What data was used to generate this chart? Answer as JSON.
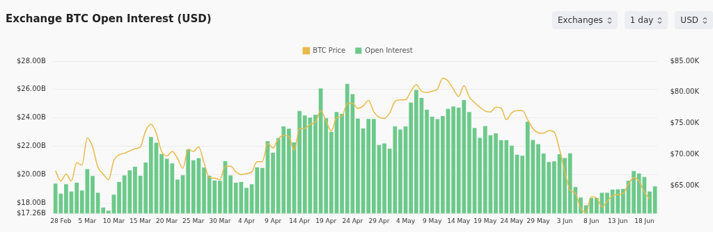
{
  "chart_data": {
    "type": "bar",
    "title": "Exchange BTC Open Interest (USD)",
    "annotations": [
      "Exchanges",
      "1 day",
      "USD"
    ],
    "categories": [
      null,
      "28 Feb",
      null,
      null,
      null,
      null,
      "5 Mar",
      null,
      null,
      null,
      null,
      "10 Mar",
      null,
      null,
      null,
      null,
      "15 Mar",
      null,
      null,
      null,
      null,
      "20 Mar",
      null,
      null,
      null,
      null,
      "25 Mar",
      null,
      null,
      null,
      null,
      "30 Mar",
      null,
      null,
      null,
      null,
      "4 Apr",
      null,
      null,
      null,
      null,
      "9 Apr",
      null,
      null,
      null,
      null,
      "14 Apr",
      null,
      null,
      null,
      null,
      "19 Apr",
      null,
      null,
      null,
      null,
      "24 Apr",
      null,
      null,
      null,
      null,
      "29 Apr",
      null,
      null,
      null,
      null,
      "4 May",
      null,
      null,
      null,
      null,
      "9 May",
      null,
      null,
      null,
      null,
      "14 May",
      null,
      null,
      null,
      null,
      "19 May",
      null,
      null,
      null,
      null,
      "24 May",
      null,
      null,
      null,
      null,
      "29 May",
      null,
      null,
      null,
      null,
      "3 Jun",
      null,
      null,
      null,
      null,
      "8 Jun",
      null,
      null,
      null,
      null,
      "13 Jun",
      null,
      null,
      null,
      null,
      "18 Jun",
      null,
      null
    ],
    "series": [
      {
        "name": "BTC Price",
        "type": "line",
        "axis": "y2",
        "color": "#e9b949",
        "values": [
          67.37,
          65.73,
          66.82,
          65.73,
          68.65,
          68.28,
          72.66,
          71.2,
          67.92,
          66.82,
          65.91,
          69.01,
          69.93,
          70.18,
          70.55,
          70.91,
          71.2,
          73.76,
          74.85,
          73.39,
          70.47,
          69.74,
          70.47,
          69.38,
          67.74,
          70.84,
          70.47,
          71.2,
          68.65,
          66.28,
          66.17,
          65.91,
          68.1,
          68.1,
          67.19,
          66.75,
          66.9,
          67.19,
          68.83,
          68.83,
          71.75,
          71.02,
          72.48,
          73.03,
          72.85,
          70.66,
          74.12,
          74.2,
          74.85,
          75.22,
          77.04,
          75.4,
          73.76,
          75.95,
          76.13,
          78.14,
          78.21,
          77.41,
          77.77,
          78.69,
          76.86,
          75.95,
          75.77,
          76.68,
          78.5,
          78.76,
          78.8,
          80.15,
          81.24,
          80.15,
          79.96,
          80.15,
          80.51,
          82.23,
          81.79,
          80.51,
          79.31,
          81.06,
          79.23,
          78.32,
          77.59,
          76.97,
          76.82,
          77.59,
          77.41,
          75.58,
          76.68,
          77.04,
          77.04,
          75.58,
          74.12,
          73.47,
          73.39,
          73.83,
          73.58,
          70.84,
          67.19,
          64.27,
          63.72,
          61.35,
          60.69,
          63.18,
          63.0,
          61.53,
          62.45,
          63.36,
          63.54,
          63.72,
          65.18,
          66.28,
          65.73,
          63.91,
          62.82,
          null
        ]
      },
      {
        "name": "Open Interest",
        "color": "#6cc98a",
        "values": [
          19.37,
          18.66,
          19.32,
          18.8,
          19.42,
          18.87,
          20.38,
          19.9,
          18.72,
          17.67,
          17.45,
          18.58,
          19.48,
          19.94,
          20.3,
          20.55,
          19.92,
          20.85,
          22.65,
          22.24,
          21.45,
          21.12,
          20.79,
          19.65,
          19.95,
          21.76,
          21.0,
          21.15,
          20.49,
          19.92,
          19.57,
          19.56,
          20.94,
          19.94,
          19.43,
          19.48,
          19.06,
          19.32,
          20.5,
          20.47,
          22.35,
          21.54,
          22.57,
          23.39,
          23.24,
          22.27,
          24.49,
          24.16,
          24.02,
          24.22,
          26.08,
          23.97,
          23.02,
          24.41,
          24.28,
          26.39,
          25.67,
          23.94,
          23.26,
          23.92,
          23.92,
          22.08,
          22.2,
          21.83,
          23.39,
          23.18,
          23.4,
          25.07,
          25.97,
          25.4,
          24.57,
          24.08,
          23.91,
          24.13,
          24.63,
          24.8,
          24.72,
          25.26,
          24.41,
          23.28,
          22.58,
          23.42,
          22.77,
          22.9,
          22.43,
          22.43,
          22.03,
          21.4,
          21.32,
          23.73,
          22.44,
          22.14,
          21.48,
          20.88,
          20.93,
          21.43,
          21.17,
          21.5,
          19.12,
          18.39,
          17.83,
          18.35,
          18.35,
          18.71,
          18.71,
          18.93,
          18.96,
          18.99,
          19.56,
          20.25,
          20.08,
          19.83,
          18.8,
          19.17
        ]
      }
    ],
    "ylim": [
      17.26,
      28
    ],
    "yticks": [
      {
        "value": 17.26,
        "label": "$17.26B"
      },
      {
        "value": 18,
        "label": "$18.00B"
      },
      {
        "value": 20,
        "label": "$20.00B"
      },
      {
        "value": 22,
        "label": "$22.00B"
      },
      {
        "value": 24,
        "label": "$24.00B"
      },
      {
        "value": 26,
        "label": "$26.00B"
      },
      {
        "value": 28,
        "label": "$28.00B"
      }
    ],
    "y2lim": [
      60.5,
      85
    ],
    "y2ticks": [
      {
        "value": 65,
        "label": "$65.00K"
      },
      {
        "value": 70,
        "label": "$70.00K"
      },
      {
        "value": 75,
        "label": "$75.00K"
      },
      {
        "value": 80,
        "label": "$80.00K"
      },
      {
        "value": 85,
        "label": "$85.00K"
      }
    ],
    "grid": "y",
    "legend": "top",
    "marker": "none",
    "line_style": "solid"
  }
}
